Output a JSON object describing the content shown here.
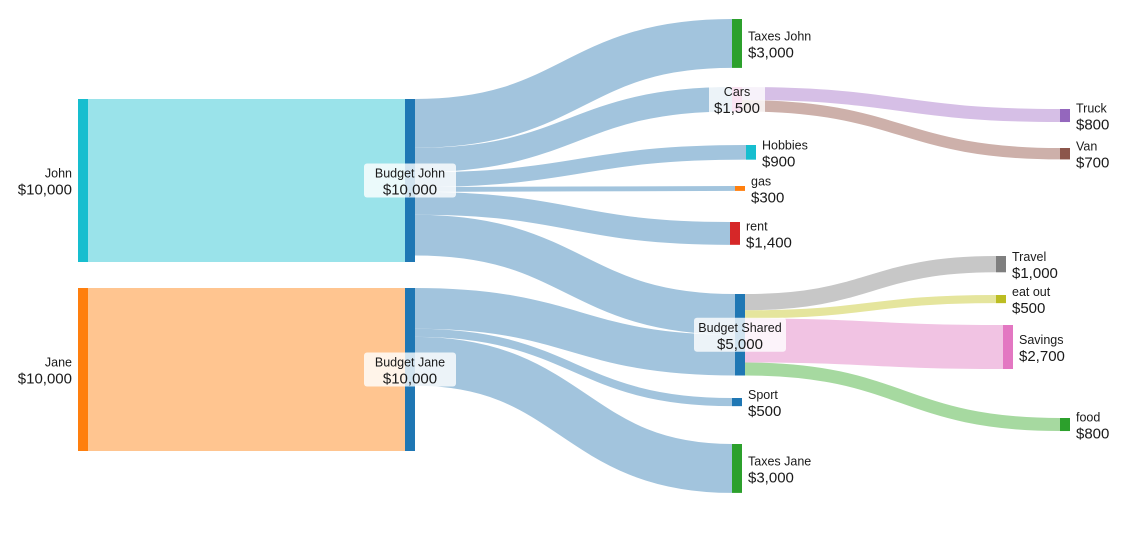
{
  "nodes": {
    "john": {
      "name": "John",
      "value": "$10,000",
      "color": "#17becf"
    },
    "jane": {
      "name": "Jane",
      "value": "$10,000",
      "color": "#ff7f0e"
    },
    "budget_john": {
      "name": "Budget John",
      "value": "$10,000",
      "color": "#1f77b4"
    },
    "budget_jane": {
      "name": "Budget Jane",
      "value": "$10,000",
      "color": "#1f77b4"
    },
    "taxes_john": {
      "name": "Taxes John",
      "value": "$3,000",
      "color": "#2ca02c"
    },
    "cars": {
      "name": "Cars",
      "value": "$1,500",
      "color": "#e377c2"
    },
    "hobbies": {
      "name": "Hobbies",
      "value": "$900",
      "color": "#17becf"
    },
    "gas": {
      "name": "gas",
      "value": "$300",
      "color": "#ff7f0e"
    },
    "rent": {
      "name": "rent",
      "value": "$1,400",
      "color": "#d62728"
    },
    "budget_shared": {
      "name": "Budget Shared",
      "value": "$5,000",
      "color": "#1f77b4"
    },
    "sport": {
      "name": "Sport",
      "value": "$500",
      "color": "#1f77b4"
    },
    "taxes_jane": {
      "name": "Taxes Jane",
      "value": "$3,000",
      "color": "#2ca02c"
    },
    "truck": {
      "name": "Truck",
      "value": "$800",
      "color": "#9467bd"
    },
    "van": {
      "name": "Van",
      "value": "$700",
      "color": "#8c564b"
    },
    "travel": {
      "name": "Travel",
      "value": "$1,000",
      "color": "#7f7f7f"
    },
    "eat_out": {
      "name": "eat out",
      "value": "$500",
      "color": "#bcbd22"
    },
    "savings": {
      "name": "Savings",
      "value": "$2,700",
      "color": "#e377c2"
    },
    "food": {
      "name": "food",
      "value": "$800",
      "color": "#2ca02c"
    }
  },
  "links": [
    {
      "source": "john",
      "target": "budget_john",
      "value": 10000,
      "color": "#9ae3ea"
    },
    {
      "source": "jane",
      "target": "budget_jane",
      "value": 10000,
      "color": "#ffc590"
    },
    {
      "source": "budget_john",
      "target": "taxes_john",
      "value": 3000,
      "color": "#a2c4dd"
    },
    {
      "source": "budget_john",
      "target": "cars",
      "value": 1500,
      "color": "#a2c4dd"
    },
    {
      "source": "budget_john",
      "target": "hobbies",
      "value": 900,
      "color": "#a2c4dd"
    },
    {
      "source": "budget_john",
      "target": "gas",
      "value": 300,
      "color": "#a2c4dd"
    },
    {
      "source": "budget_john",
      "target": "rent",
      "value": 1400,
      "color": "#a2c4dd"
    },
    {
      "source": "budget_john",
      "target": "budget_shared",
      "value": 2500,
      "color": "#a2c4dd"
    },
    {
      "source": "budget_jane",
      "target": "budget_shared",
      "value": 2500,
      "color": "#a2c4dd"
    },
    {
      "source": "budget_jane",
      "target": "sport",
      "value": 500,
      "color": "#a2c4dd"
    },
    {
      "source": "budget_jane",
      "target": "taxes_jane",
      "value": 3000,
      "color": "#a2c4dd"
    },
    {
      "source": "cars",
      "target": "truck",
      "value": 800,
      "color": "#d6bfe6"
    },
    {
      "source": "cars",
      "target": "van",
      "value": 700,
      "color": "#cdb0aa"
    },
    {
      "source": "budget_shared",
      "target": "travel",
      "value": 1000,
      "color": "#c7c7c7"
    },
    {
      "source": "budget_shared",
      "target": "eat_out",
      "value": 500,
      "color": "#e5e59d"
    },
    {
      "source": "budget_shared",
      "target": "savings",
      "value": 2700,
      "color": "#f1c3e3"
    },
    {
      "source": "budget_shared",
      "target": "food",
      "value": 800,
      "color": "#a6d9a0"
    }
  ]
}
